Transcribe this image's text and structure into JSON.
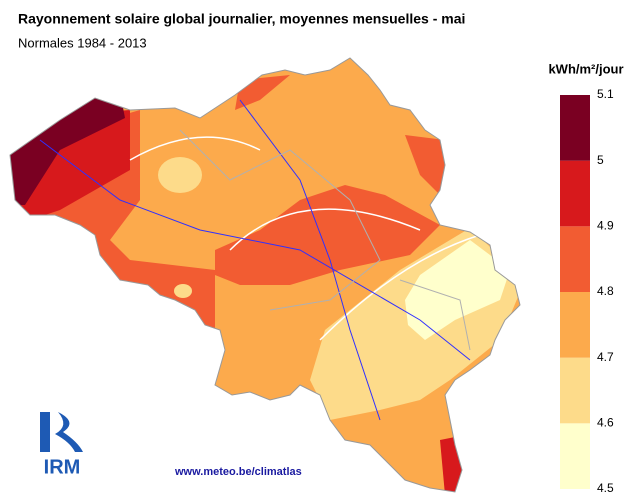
{
  "header": {
    "title": "Rayonnement solaire global journalier, moyennes mensuelles - mai",
    "subtitle": "Normales 1984 - 2013"
  },
  "legend": {
    "title": "kWh/m²/jour",
    "bins": [
      4.5,
      4.6,
      4.7,
      4.8,
      4.9,
      5,
      5.1
    ],
    "colors": [
      "#ffffcc",
      "#fddb8a",
      "#fcaa4c",
      "#f25c32",
      "#d7191c",
      "#7a0022"
    ]
  },
  "logo": {
    "text": "IRM"
  },
  "footer": {
    "url": "www.meteo.be/climatlas"
  }
}
